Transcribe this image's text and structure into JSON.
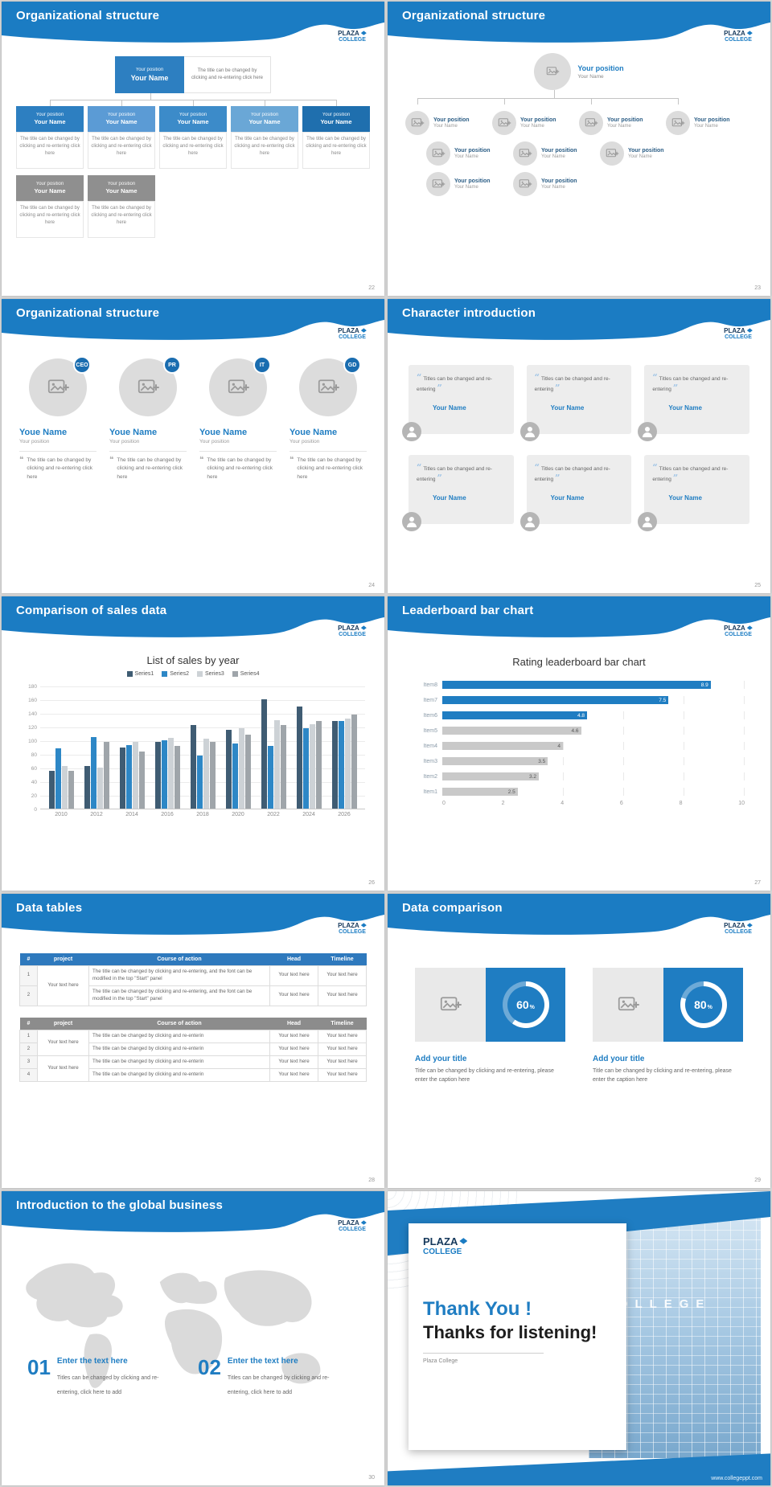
{
  "logo": {
    "top": "PLAZA",
    "bottom": "COLLEGE"
  },
  "slides": {
    "s22": {
      "title": "Organizational structure",
      "page": "22",
      "node": {
        "position": "Your position",
        "name": "Your Name"
      },
      "desc": "The title can be changed by clicking and re-entering click here"
    },
    "s23": {
      "title": "Organizational structure",
      "page": "23",
      "node": {
        "position": "Your position",
        "name": "Your Name"
      }
    },
    "s24": {
      "title": "Organizational structure",
      "page": "24",
      "name": "Youe Name",
      "position": "Your position",
      "desc": "The title can be changed by clicking and re-entering click here",
      "members": [
        {
          "badge": "CEO"
        },
        {
          "badge": "PR"
        },
        {
          "badge": "IT"
        },
        {
          "badge": "GD"
        }
      ]
    },
    "s25": {
      "title": "Character introduction",
      "page": "25",
      "card_text": "Titles can be changed and re-entering",
      "card_name": "Your Name"
    },
    "s26": {
      "title": "Comparison of sales data",
      "page": "26",
      "chart_data": {
        "type": "bar",
        "title": "List of sales by year",
        "categories": [
          "2010",
          "2012",
          "2014",
          "2016",
          "2018",
          "2020",
          "2022",
          "2024",
          "2026"
        ],
        "series": [
          {
            "name": "Series1",
            "color": "#3f5c73",
            "values": [
              55,
              62,
              90,
              98,
              122,
              115,
              160,
              150,
              128
            ]
          },
          {
            "name": "Series2",
            "color": "#2d87c6",
            "values": [
              88,
              105,
              93,
              100,
              78,
              95,
              92,
              118,
              128
            ]
          },
          {
            "name": "Series3",
            "color": "#cdd2d6",
            "values": [
              62,
              60,
              98,
              104,
              102,
              118,
              130,
              123,
              132
            ]
          },
          {
            "name": "Series4",
            "color": "#9fa5aa",
            "values": [
              55,
              98,
              84,
              92,
              98,
              108,
              122,
              128,
              138
            ]
          }
        ],
        "ylim": [
          0,
          180
        ],
        "ytick_step": 20,
        "grid": true,
        "legend_position": "top"
      }
    },
    "s27": {
      "title": "Leaderboard bar chart",
      "page": "27",
      "chart_data": {
        "type": "bar_horizontal",
        "title": "Rating leaderboard bar chart",
        "items": [
          {
            "label": "Item8",
            "value": 8.9,
            "color": "blue"
          },
          {
            "label": "Item7",
            "value": 7.5,
            "color": "blue"
          },
          {
            "label": "Item6",
            "value": 4.8,
            "color": "blue"
          },
          {
            "label": "Item5",
            "value": 4.6,
            "color": "gray"
          },
          {
            "label": "Item4",
            "value": 4,
            "color": "gray"
          },
          {
            "label": "Item3",
            "value": 3.5,
            "color": "gray"
          },
          {
            "label": "Item2",
            "value": 3.2,
            "color": "gray"
          },
          {
            "label": "Item1",
            "value": 2.5,
            "color": "gray"
          }
        ],
        "xlim": [
          0,
          10
        ],
        "xticks": [
          0,
          2,
          4,
          6,
          8,
          10
        ],
        "colors": {
          "blue": "#1f7dc2",
          "gray": "#c9c9c9"
        }
      }
    },
    "s28": {
      "title": "Data tables",
      "page": "28",
      "headers": [
        "#",
        "project",
        "Course of action",
        "Head",
        "Timeline"
      ],
      "cell": "Your text here",
      "course_long": "The title can be changed by clicking and re-entering, and the font can be modified in the top \"Start\" panel",
      "course_short": "The title can be changed by clicking and re-enterin",
      "t1_nums": [
        "1",
        "2"
      ],
      "t2_nums": [
        "1",
        "2",
        "3",
        "4"
      ]
    },
    "s29": {
      "title": "Data comparison",
      "page": "29",
      "items": [
        {
          "percent": 60
        },
        {
          "percent": 80
        }
      ],
      "pct_suffix": "%",
      "item_title": "Add your title",
      "caption": "Title can be changed by clicking and re-entering, please enter the caption here"
    },
    "s30": {
      "title": "Introduction to the global business",
      "page": "30",
      "items": [
        {
          "num": "01"
        },
        {
          "num": "02"
        }
      ],
      "item_title": "Enter the text here",
      "item_body": "Titles can be changed by clicking and re-entering, click here to add"
    },
    "sT": {
      "thank1": "Thank You !",
      "thank2": "Thanks for listening!",
      "subtitle": "Plaza College",
      "url": "www.collegeppt.com",
      "building_text": "COLLEGE"
    }
  }
}
